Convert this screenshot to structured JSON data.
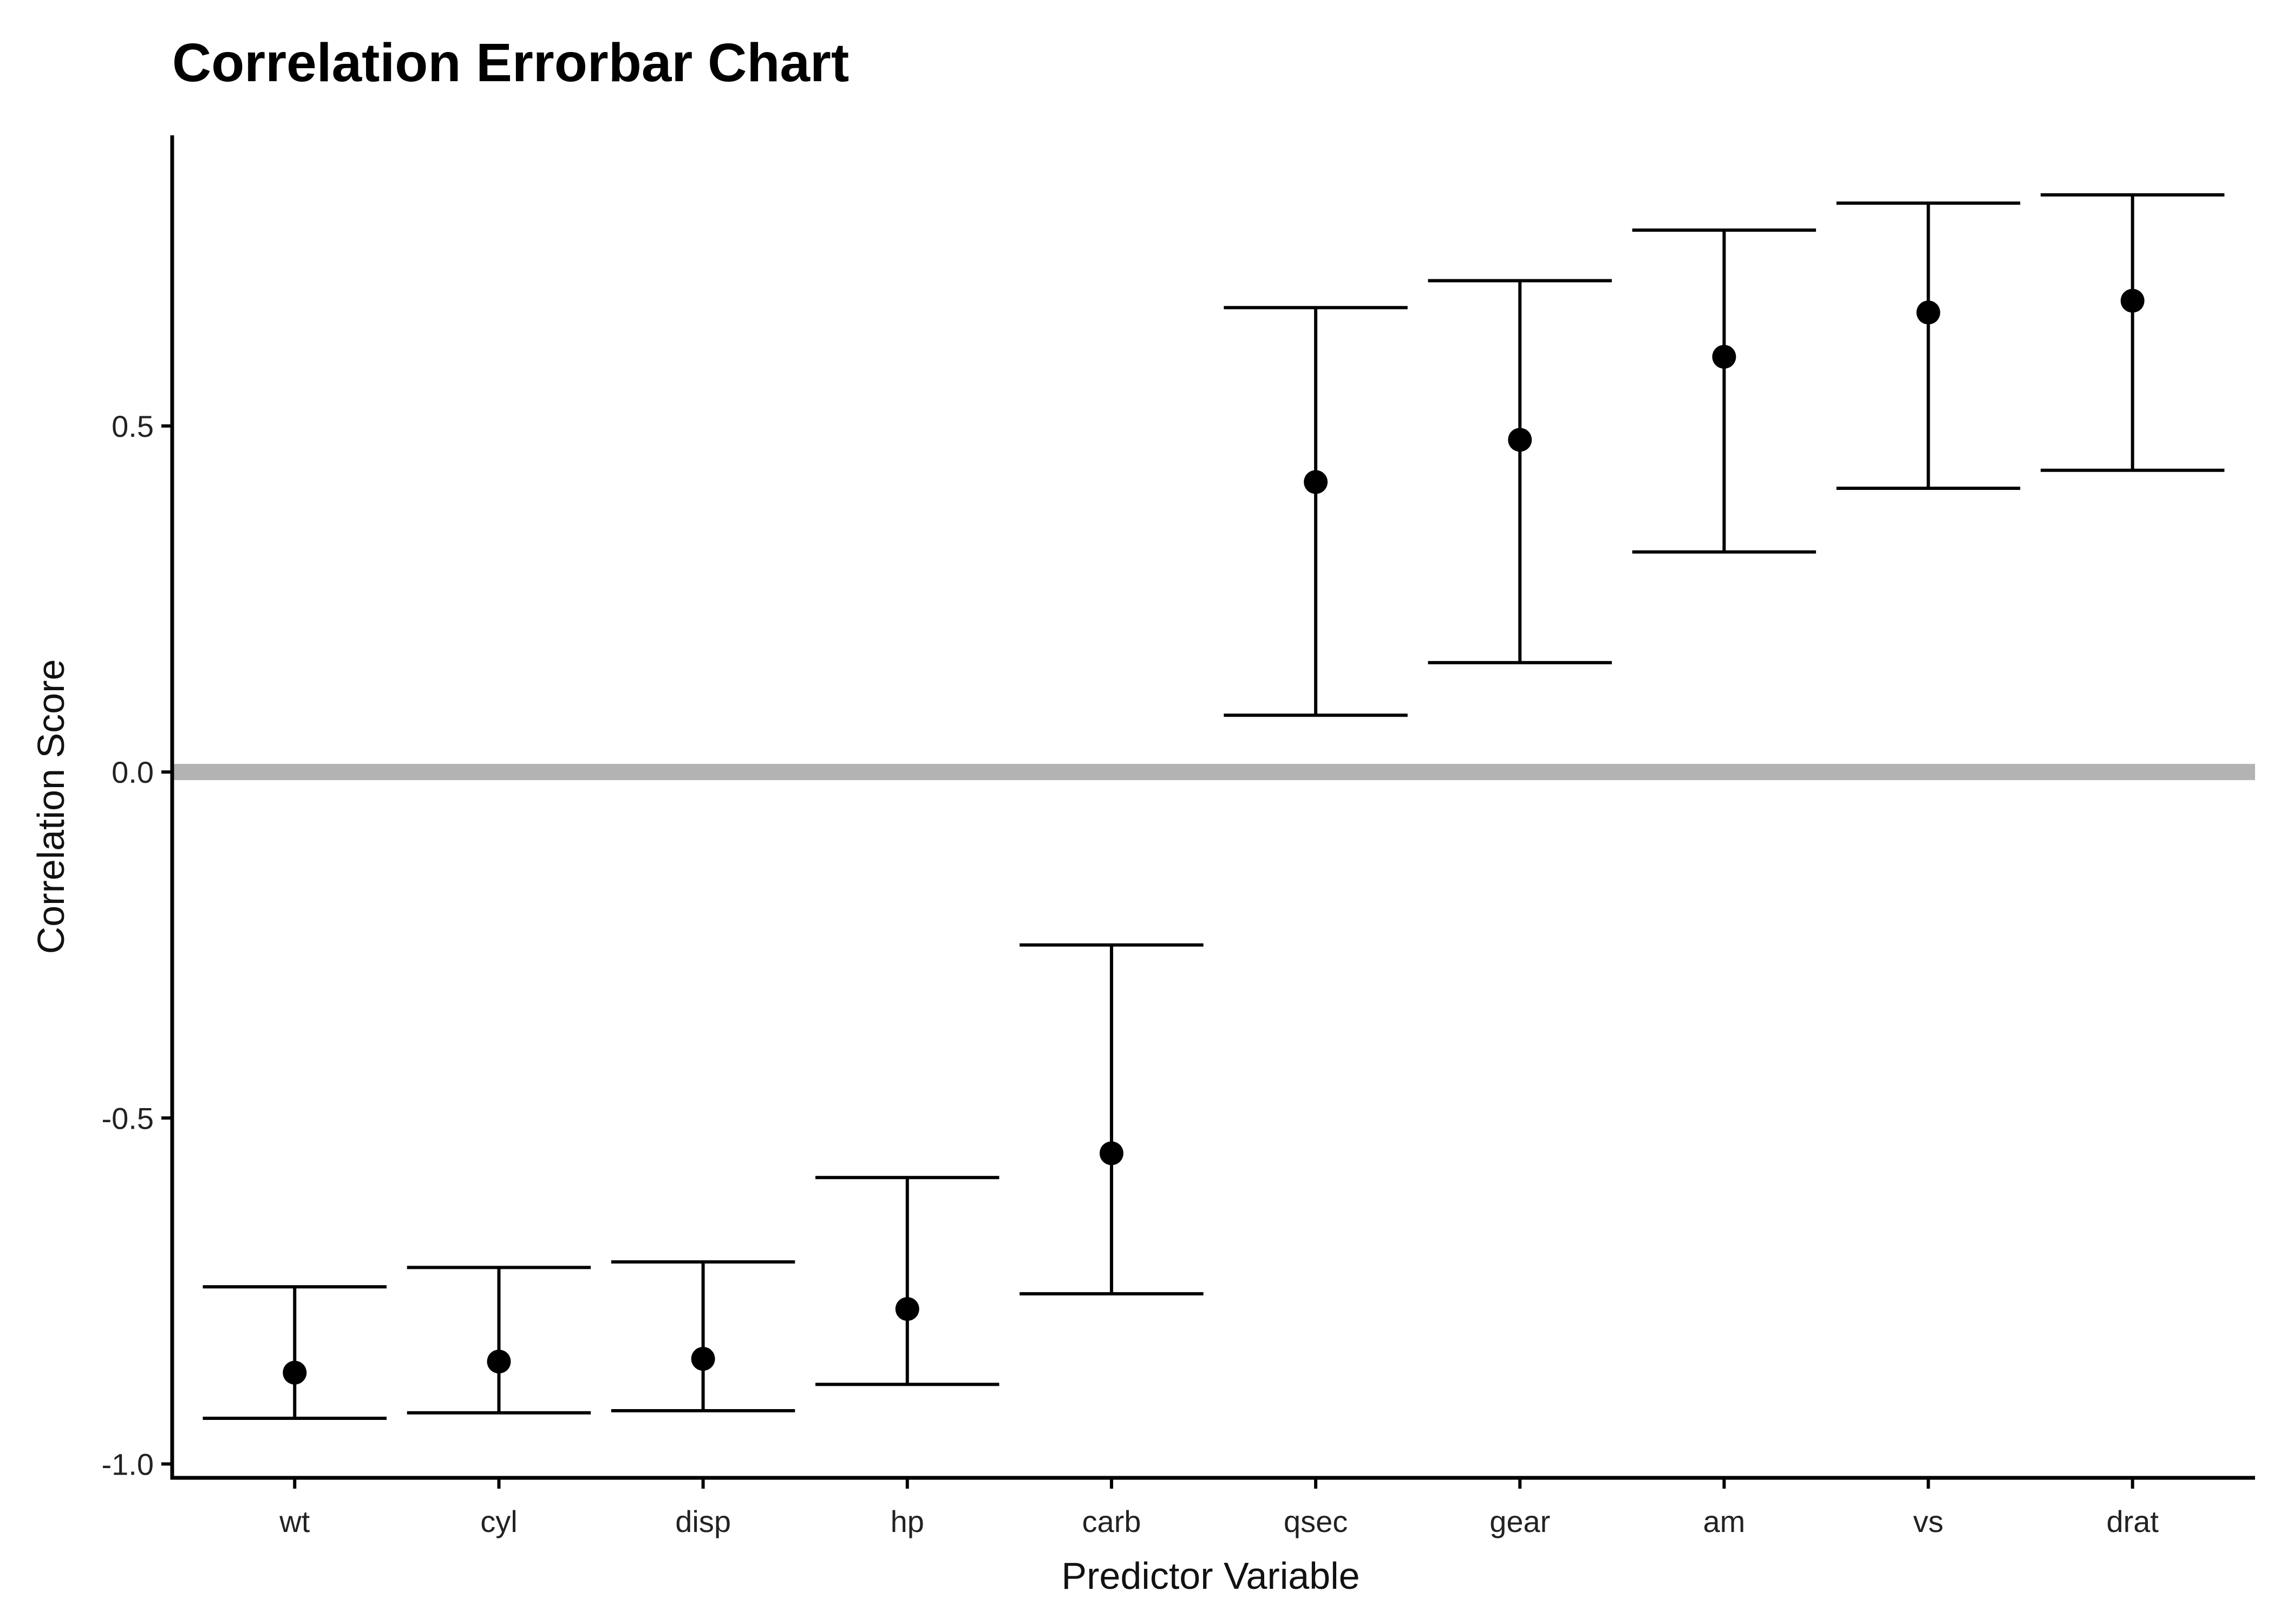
{
  "chart_data": {
    "type": "errorbar",
    "title": "Correlation Errorbar Chart",
    "xlabel": "Predictor Variable",
    "ylabel": "Correlation Score",
    "ylim": [
      -1.02,
      0.92
    ],
    "yticks": [
      -1.0,
      -0.5,
      0.0,
      0.5
    ],
    "ytick_labels": [
      "-1.0",
      "-0.5",
      "0.0",
      "0.5"
    ],
    "reference_line": {
      "y": 0.0,
      "color": "#b3b3b3"
    },
    "grid": false,
    "categories": [
      "wt",
      "cyl",
      "disp",
      "hp",
      "carb",
      "qsec",
      "gear",
      "am",
      "vs",
      "drat"
    ],
    "series": [
      {
        "estimate": [
          -0.868,
          -0.852,
          -0.848,
          -0.776,
          -0.551,
          0.419,
          0.48,
          0.6,
          0.664,
          0.681
        ],
        "lower": [
          -0.934,
          -0.926,
          -0.923,
          -0.885,
          -0.754,
          0.082,
          0.158,
          0.318,
          0.41,
          0.436
        ],
        "upper": [
          -0.744,
          -0.716,
          -0.708,
          -0.586,
          -0.25,
          0.671,
          0.71,
          0.783,
          0.822,
          0.834
        ]
      }
    ],
    "colors": {
      "marks": "#000000",
      "axis": "#000000"
    }
  }
}
